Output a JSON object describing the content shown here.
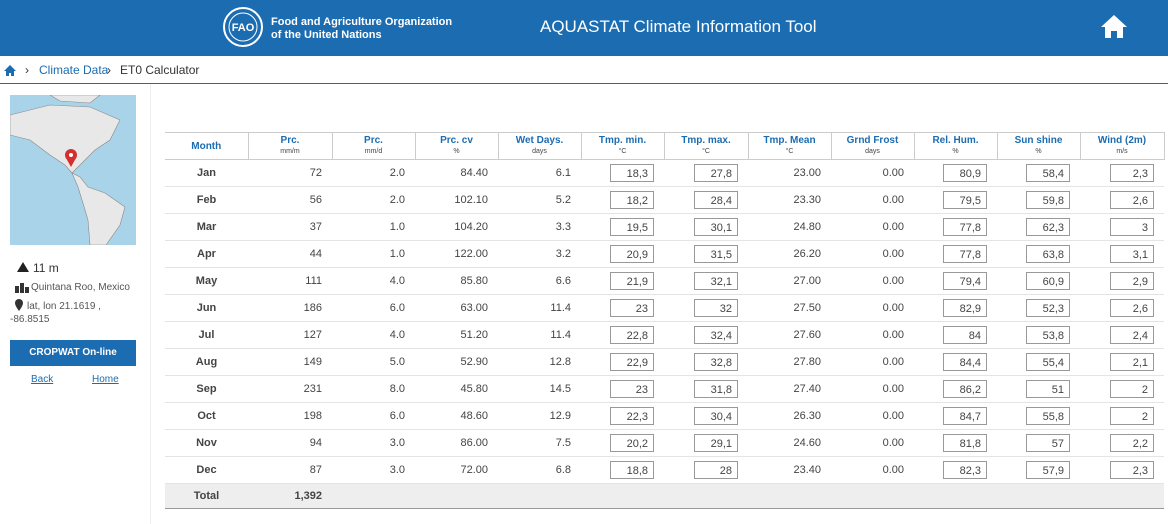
{
  "header": {
    "logo_text": "FAO",
    "org_line1": "Food and Agriculture Organization",
    "org_line2": "of the United Nations",
    "title": "AQUASTAT Climate Information Tool"
  },
  "breadcrumb": [
    "Climate Data",
    "ET0 Calculator"
  ],
  "sidebar": {
    "elevation": "11 m",
    "region": "Quintana Roo, Mexico",
    "coords": "lat, lon 21.1619 , -86.8515",
    "button": "CROPWAT On-line",
    "links": [
      "Back",
      "Home"
    ]
  },
  "table": {
    "columns": [
      {
        "name": "Month"
      },
      {
        "name": "Prc.",
        "unit": "mm/m"
      },
      {
        "name": "Prc.",
        "unit": "mm/d"
      },
      {
        "name": "Prc. cv",
        "unit": "%"
      },
      {
        "name": "Wet Days.",
        "unit": "days"
      },
      {
        "name": "Tmp. min.",
        "unit": "°C"
      },
      {
        "name": "Tmp. max.",
        "unit": "°C"
      },
      {
        "name": "Tmp. Mean",
        "unit": "°C"
      },
      {
        "name": "Grnd Frost",
        "unit": "days"
      },
      {
        "name": "Rel. Hum.",
        "unit": "%"
      },
      {
        "name": "Sun shine",
        "unit": "%"
      },
      {
        "name": "Wind (2m)",
        "unit": "m/s"
      }
    ],
    "rows": [
      [
        "Jan",
        "72",
        "2.0",
        "84.40",
        "6.1",
        "18,3",
        "27,8",
        "23.00",
        "0.00",
        "80,9",
        "58,4",
        "2,3"
      ],
      [
        "Feb",
        "56",
        "2.0",
        "102.10",
        "5.2",
        "18,2",
        "28,4",
        "23.30",
        "0.00",
        "79,5",
        "59,8",
        "2,6"
      ],
      [
        "Mar",
        "37",
        "1.0",
        "104.20",
        "3.3",
        "19,5",
        "30,1",
        "24.80",
        "0.00",
        "77,8",
        "62,3",
        "3"
      ],
      [
        "Apr",
        "44",
        "1.0",
        "122.00",
        "3.2",
        "20,9",
        "31,5",
        "26.20",
        "0.00",
        "77,8",
        "63,8",
        "3,1"
      ],
      [
        "May",
        "111",
        "4.0",
        "85.80",
        "6.6",
        "21,9",
        "32,1",
        "27.00",
        "0.00",
        "79,4",
        "60,9",
        "2,9"
      ],
      [
        "Jun",
        "186",
        "6.0",
        "63.00",
        "11.4",
        "23",
        "32",
        "27.50",
        "0.00",
        "82,9",
        "52,3",
        "2,6"
      ],
      [
        "Jul",
        "127",
        "4.0",
        "51.20",
        "11.4",
        "22,8",
        "32,4",
        "27.60",
        "0.00",
        "84",
        "53,8",
        "2,4"
      ],
      [
        "Aug",
        "149",
        "5.0",
        "52.90",
        "12.8",
        "22,9",
        "32,8",
        "27.80",
        "0.00",
        "84,4",
        "55,4",
        "2,1"
      ],
      [
        "Sep",
        "231",
        "8.0",
        "45.80",
        "14.5",
        "23",
        "31,8",
        "27.40",
        "0.00",
        "86,2",
        "51",
        "2"
      ],
      [
        "Oct",
        "198",
        "6.0",
        "48.60",
        "12.9",
        "22,3",
        "30,4",
        "26.30",
        "0.00",
        "84,7",
        "55,8",
        "2"
      ],
      [
        "Nov",
        "94",
        "3.0",
        "86.00",
        "7.5",
        "20,2",
        "29,1",
        "24.60",
        "0.00",
        "81,8",
        "57",
        "2,2"
      ],
      [
        "Dec",
        "87",
        "3.0",
        "72.00",
        "6.8",
        "18,8",
        "28",
        "23.40",
        "0.00",
        "82,3",
        "57,9",
        "2,3"
      ]
    ],
    "total": {
      "label": "Total",
      "value": "1,392"
    }
  }
}
